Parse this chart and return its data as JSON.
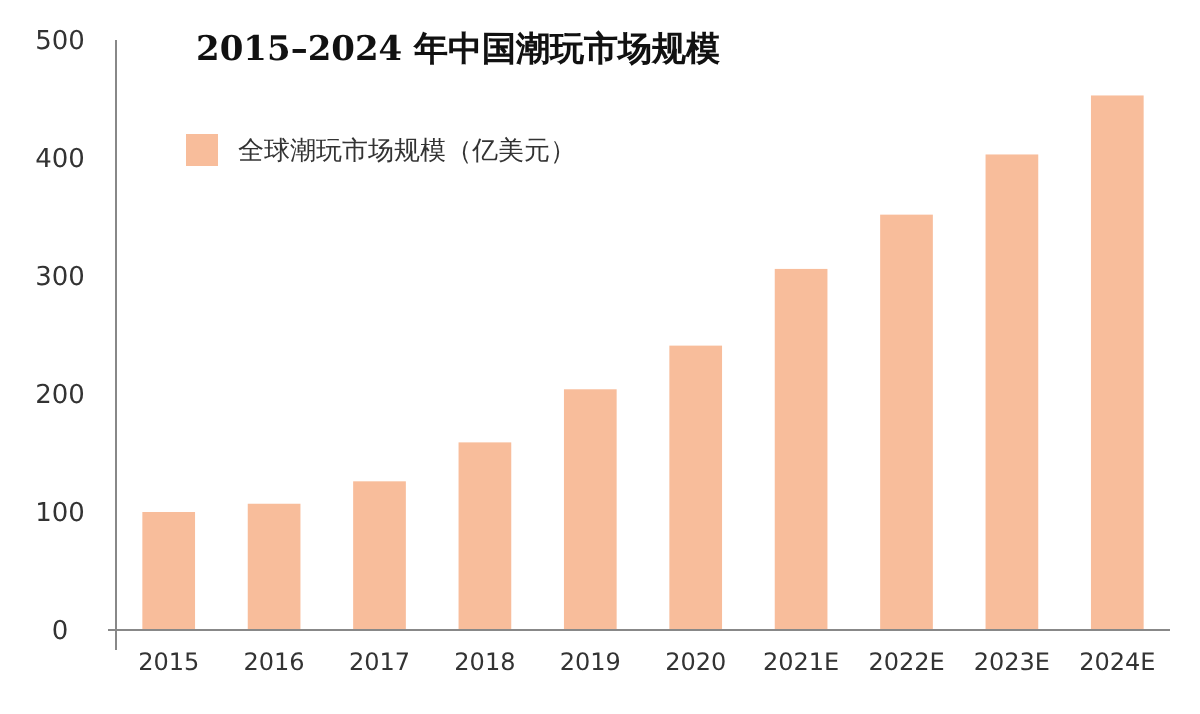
{
  "chart_data": {
    "type": "bar",
    "title": "2015–2024 年中国潮玩市场规模",
    "categories": [
      "2015",
      "2016",
      "2017",
      "2018",
      "2019",
      "2020",
      "2021E",
      "2022E",
      "2023E",
      "2024E"
    ],
    "series": [
      {
        "name": "全球潮玩市场规模（亿美元）",
        "color": "#f8bd9b",
        "values": [
          100,
          107,
          126,
          159,
          204,
          241,
          306,
          352,
          403,
          453
        ]
      }
    ],
    "ylim": [
      0,
      500
    ],
    "yticks": [
      0,
      100,
      200,
      300,
      400,
      500
    ],
    "grid": false,
    "legend": "top left"
  }
}
